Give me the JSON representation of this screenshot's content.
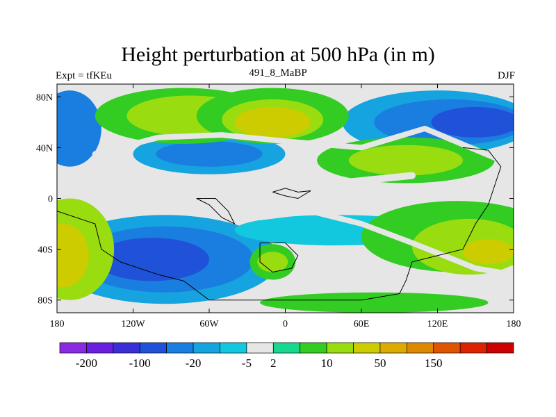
{
  "chart_data": {
    "type": "heatmap",
    "title": "Height perturbation at 500 hPa (in m)",
    "subtitle_left": "Expt = tfKEu",
    "subtitle_center": "491_8_MaBP",
    "subtitle_right": "DJF",
    "x_ticks": [
      "180",
      "120W",
      "60W",
      "0",
      "60E",
      "120E",
      "180"
    ],
    "y_ticks": [
      "80N",
      "40N",
      "0",
      "40S",
      "80S"
    ],
    "colorbar": {
      "colors": [
        "#8a2be2",
        "#6a1fe0",
        "#3a2fd6",
        "#1f52d8",
        "#1a7ee0",
        "#16a4e0",
        "#12c8de",
        "#e6e6e6",
        "#18d890",
        "#33cc22",
        "#99dd11",
        "#cccc00",
        "#ddaa00",
        "#dd8800",
        "#dd5500",
        "#dd2200",
        "#cc0000"
      ],
      "labels": [
        "-200",
        "-100",
        "-20",
        "-5",
        "2",
        "10",
        "50",
        "150"
      ]
    },
    "regions": [
      {
        "shape": "rect",
        "x0": -180,
        "x1": 180,
        "y0": -90,
        "y1": 90,
        "level": 0
      },
      {
        "shape": "ell",
        "cx": -95,
        "cy": -48,
        "rx": 90,
        "ry": 35,
        "level": -2
      },
      {
        "shape": "ell",
        "cx": -95,
        "cy": -48,
        "rx": 70,
        "ry": 26,
        "level": -3
      },
      {
        "shape": "ell",
        "cx": -105,
        "cy": -48,
        "rx": 45,
        "ry": 17,
        "level": -4
      },
      {
        "shape": "ell",
        "cx": -60,
        "cy": 35,
        "rx": 60,
        "ry": 16,
        "level": -2
      },
      {
        "shape": "ell",
        "cx": -60,
        "cy": 35,
        "rx": 42,
        "ry": 10,
        "level": -3
      },
      {
        "shape": "ell",
        "cx": -170,
        "cy": 55,
        "rx": 25,
        "ry": 30,
        "level": -3
      },
      {
        "shape": "ell",
        "cx": 120,
        "cy": 60,
        "rx": 75,
        "ry": 25,
        "level": -2
      },
      {
        "shape": "ell",
        "cx": 130,
        "cy": 60,
        "rx": 60,
        "ry": 18,
        "level": -3
      },
      {
        "shape": "ell",
        "cx": 150,
        "cy": 60,
        "rx": 35,
        "ry": 12,
        "level": -4
      },
      {
        "shape": "ell",
        "cx": 40,
        "cy": -25,
        "rx": 80,
        "ry": 12,
        "level": -1
      },
      {
        "shape": "ell",
        "cx": -80,
        "cy": 65,
        "rx": 70,
        "ry": 22,
        "level": 2
      },
      {
        "shape": "ell",
        "cx": -75,
        "cy": 65,
        "rx": 50,
        "ry": 16,
        "level": 3
      },
      {
        "shape": "ell",
        "cx": -10,
        "cy": 65,
        "rx": 60,
        "ry": 22,
        "level": 2
      },
      {
        "shape": "ell",
        "cx": -10,
        "cy": 62,
        "rx": 40,
        "ry": 16,
        "level": 3
      },
      {
        "shape": "ell",
        "cx": -10,
        "cy": 60,
        "rx": 30,
        "ry": 12,
        "level": 4
      },
      {
        "shape": "ell",
        "cx": 95,
        "cy": 30,
        "rx": 70,
        "ry": 18,
        "level": 2
      },
      {
        "shape": "ell",
        "cx": 95,
        "cy": 30,
        "rx": 45,
        "ry": 12,
        "level": 3
      },
      {
        "shape": "ell",
        "cx": 135,
        "cy": -30,
        "rx": 75,
        "ry": 28,
        "level": 2
      },
      {
        "shape": "ell",
        "cx": 145,
        "cy": -38,
        "rx": 45,
        "ry": 22,
        "level": 3
      },
      {
        "shape": "ell",
        "cx": 160,
        "cy": -42,
        "rx": 20,
        "ry": 10,
        "level": 4
      },
      {
        "shape": "ell",
        "cx": -170,
        "cy": -40,
        "rx": 35,
        "ry": 40,
        "level": 3
      },
      {
        "shape": "ell",
        "cx": -175,
        "cy": -45,
        "rx": 20,
        "ry": 25,
        "level": 4
      },
      {
        "shape": "ell",
        "cx": -10,
        "cy": -50,
        "rx": 18,
        "ry": 14,
        "level": 2
      },
      {
        "shape": "ell",
        "cx": -10,
        "cy": -50,
        "rx": 12,
        "ry": 8,
        "level": 3
      },
      {
        "shape": "ell",
        "cx": 70,
        "cy": -82,
        "rx": 90,
        "ry": 8,
        "level": 2
      }
    ],
    "white_bands": [
      {
        "points": [
          [
            -150,
            35
          ],
          [
            -100,
            48
          ],
          [
            -50,
            50
          ],
          [
            0,
            45
          ],
          [
            60,
            40
          ],
          [
            110,
            55
          ],
          [
            170,
            30
          ]
        ],
        "width": 8
      },
      {
        "points": [
          [
            -60,
            -5
          ],
          [
            -20,
            -15
          ],
          [
            20,
            -10
          ],
          [
            60,
            -20
          ],
          [
            100,
            -35
          ],
          [
            150,
            -55
          ],
          [
            180,
            -60
          ]
        ],
        "width": 8
      },
      {
        "points": [
          [
            -60,
            15
          ],
          [
            -10,
            8
          ],
          [
            40,
            12
          ],
          [
            100,
            18
          ]
        ],
        "width": 10
      },
      {
        "points": [
          [
            -180,
            20
          ],
          [
            -160,
            8
          ],
          [
            -130,
            5
          ],
          [
            -100,
            10
          ]
        ],
        "width": 10
      }
    ],
    "coastlines": [
      [
        [
          -180,
          -10
        ],
        [
          -150,
          -20
        ],
        [
          -145,
          -40
        ],
        [
          -130,
          -50
        ],
        [
          -100,
          -60
        ],
        [
          -80,
          -65
        ],
        [
          -60,
          -80
        ],
        [
          0,
          -80
        ],
        [
          60,
          -80
        ],
        [
          90,
          -75
        ],
        [
          95,
          -65
        ],
        [
          100,
          -50
        ],
        [
          120,
          -45
        ],
        [
          140,
          -40
        ],
        [
          150,
          -20
        ],
        [
          160,
          -5
        ],
        [
          165,
          10
        ],
        [
          170,
          25
        ],
        [
          160,
          38
        ],
        [
          140,
          40
        ]
      ],
      [
        [
          -70,
          0
        ],
        [
          -60,
          -5
        ],
        [
          -50,
          -15
        ],
        [
          -40,
          -20
        ],
        [
          -45,
          -10
        ],
        [
          -55,
          0
        ],
        [
          -70,
          0
        ]
      ],
      [
        [
          -20,
          -35
        ],
        [
          0,
          -35
        ],
        [
          10,
          -45
        ],
        [
          5,
          -55
        ],
        [
          -10,
          -58
        ],
        [
          -20,
          -50
        ],
        [
          -20,
          -35
        ]
      ],
      [
        [
          -10,
          5
        ],
        [
          0,
          8
        ],
        [
          10,
          5
        ],
        [
          20,
          6
        ],
        [
          10,
          0
        ],
        [
          0,
          2
        ],
        [
          -10,
          5
        ]
      ]
    ]
  }
}
